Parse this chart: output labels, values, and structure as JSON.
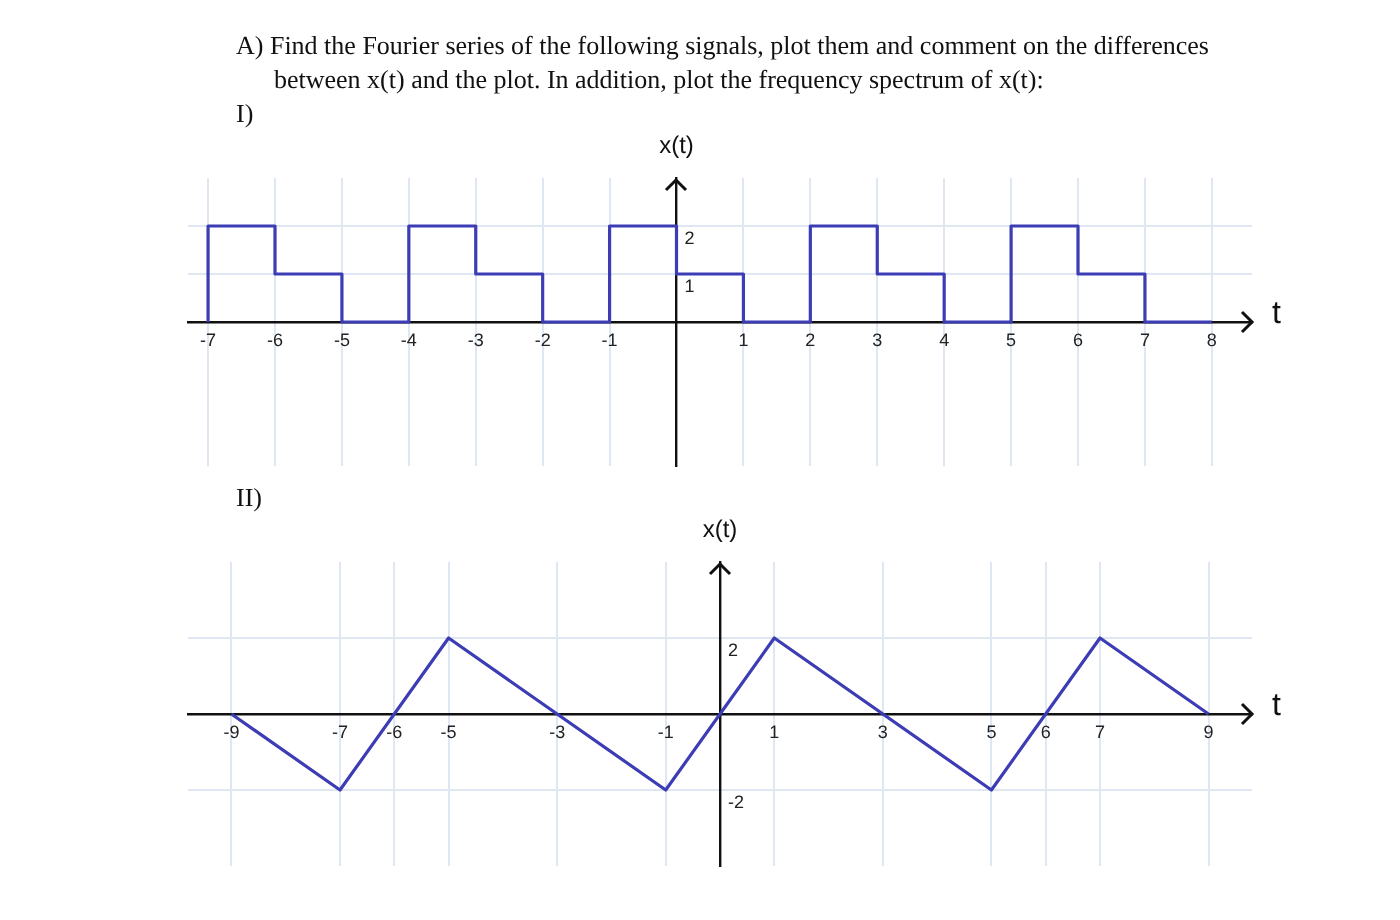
{
  "chart_data": [
    {
      "type": "step",
      "title": "A) Find the Fourier series of the following signals, plot them and comment on the differences between x(t) and the plot. In addition, plot the frequency spectrum of x(t):",
      "subtitle": "I)",
      "xlabel": "t",
      "ylabel": "x(t)",
      "x": [
        -7,
        -7,
        -6,
        -5,
        -4,
        -3,
        -2,
        -1,
        0,
        1,
        2,
        3,
        4,
        5,
        6,
        7,
        8
      ],
      "series": [
        {
          "color": "#3c3cb4",
          "values": [
            0,
            2,
            1,
            0,
            2,
            1,
            0,
            2,
            1,
            0,
            2,
            1,
            0,
            2,
            1,
            0,
            0
          ]
        }
      ],
      "xlim": [
        -7.3,
        8.6
      ],
      "ylim": [
        -3,
        3
      ],
      "xticks": [
        -7,
        -6,
        -5,
        -4,
        -3,
        -2,
        -1,
        1,
        2,
        3,
        4,
        5,
        6,
        7,
        8
      ],
      "yticks": [
        1,
        2
      ],
      "grid": true
    },
    {
      "type": "line",
      "title": "II)",
      "xlabel": "t",
      "ylabel": "x(t)",
      "x": [
        -9,
        -7,
        -5,
        -1,
        1,
        5,
        7,
        9
      ],
      "series": [
        {
          "color": "#3c3cb4",
          "values": [
            0,
            -2,
            2,
            -2,
            2,
            -2,
            2,
            0
          ]
        }
      ],
      "xlim": [
        -9.8,
        9.8
      ],
      "ylim": [
        -4,
        4
      ],
      "xticks": [
        -9,
        -7,
        -6,
        -5,
        -3,
        -1,
        1,
        3,
        5,
        6,
        7,
        9
      ],
      "yticks": [
        -2,
        2
      ],
      "grid": true
    }
  ]
}
